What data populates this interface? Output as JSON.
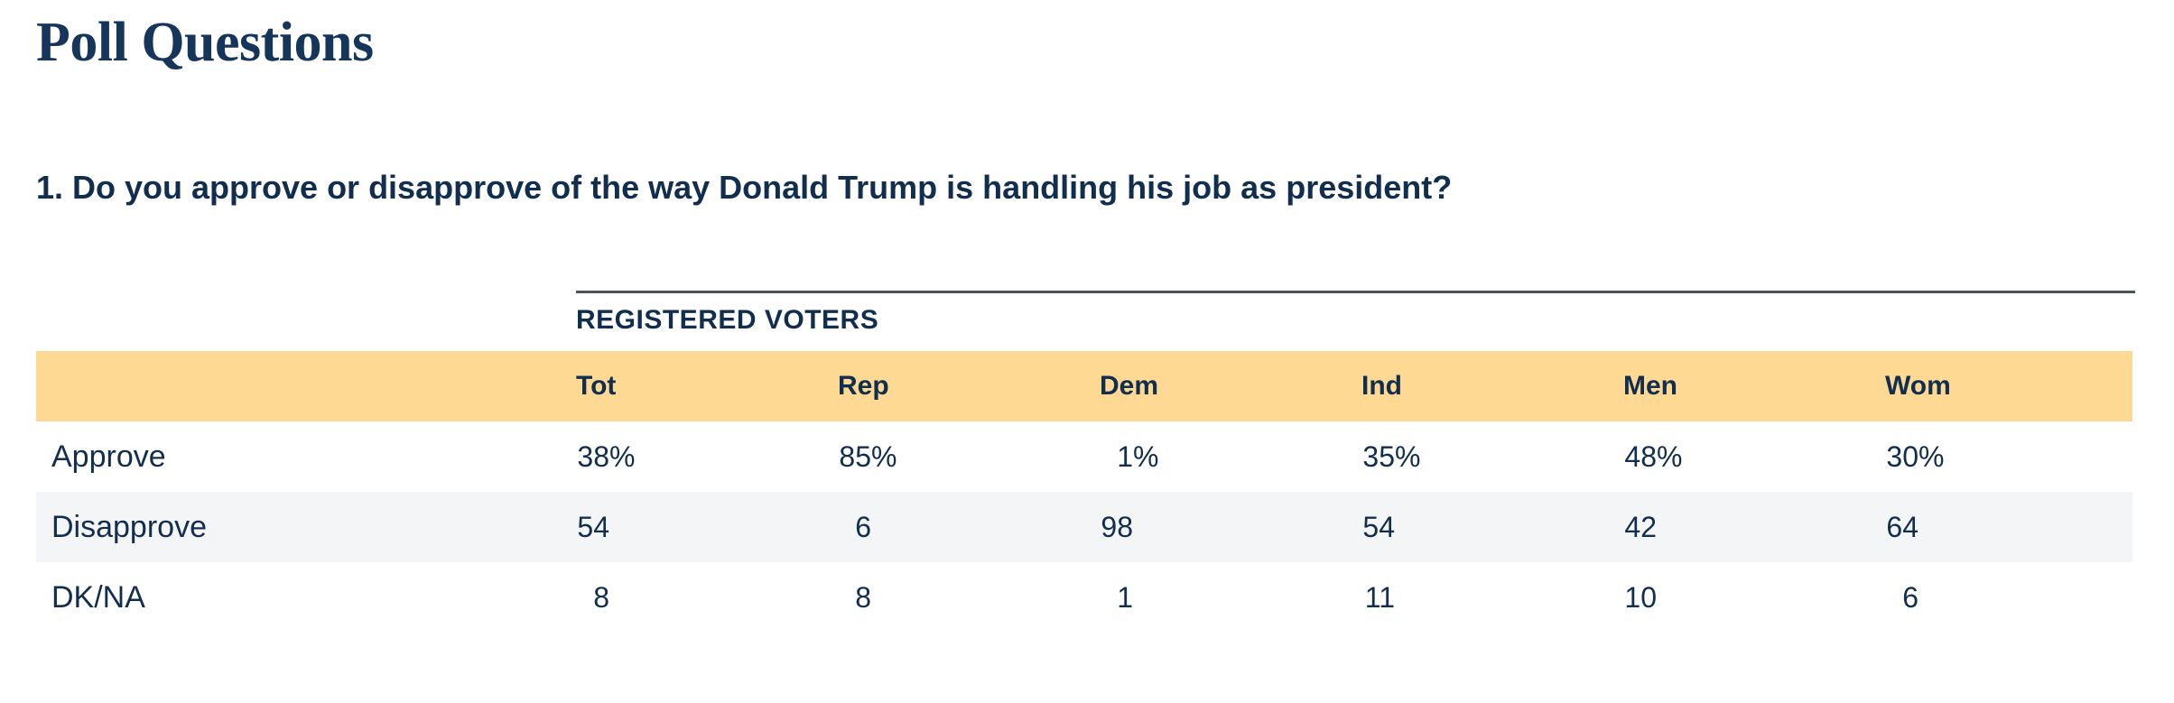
{
  "page": {
    "title": "Poll Questions"
  },
  "question": {
    "text": "1. Do you approve or disapprove of the way Donald Trump is handling his job as president?"
  },
  "table": {
    "group_header": "REGISTERED VOTERS",
    "columns": [
      "Tot",
      "Rep",
      "Dem",
      "Ind",
      "Men",
      "Wom"
    ],
    "rows": [
      {
        "label": "Approve",
        "cells": [
          {
            "num": "38",
            "suffix": "%"
          },
          {
            "num": "85",
            "suffix": "%"
          },
          {
            "num": "1",
            "suffix": "%"
          },
          {
            "num": "35",
            "suffix": "%"
          },
          {
            "num": "48",
            "suffix": "%"
          },
          {
            "num": "30",
            "suffix": "%"
          }
        ]
      },
      {
        "label": "Disapprove",
        "cells": [
          {
            "num": "54",
            "suffix": ""
          },
          {
            "num": "6",
            "suffix": ""
          },
          {
            "num": "98",
            "suffix": ""
          },
          {
            "num": "54",
            "suffix": ""
          },
          {
            "num": "42",
            "suffix": ""
          },
          {
            "num": "64",
            "suffix": ""
          }
        ]
      },
      {
        "label": "DK/NA",
        "cells": [
          {
            "num": "8",
            "suffix": ""
          },
          {
            "num": "8",
            "suffix": ""
          },
          {
            "num": "1",
            "suffix": ""
          },
          {
            "num": "11",
            "suffix": ""
          },
          {
            "num": "10",
            "suffix": ""
          },
          {
            "num": "6",
            "suffix": ""
          }
        ]
      }
    ]
  },
  "chart_data": {
    "type": "table",
    "title": "1. Do you approve or disapprove of the way Donald Trump is handling his job as president?",
    "group_header": "REGISTERED VOTERS",
    "categories": [
      "Tot",
      "Rep",
      "Dem",
      "Ind",
      "Men",
      "Wom"
    ],
    "series": [
      {
        "name": "Approve",
        "values": [
          38,
          85,
          1,
          35,
          48,
          30
        ]
      },
      {
        "name": "Disapprove",
        "values": [
          54,
          6,
          98,
          54,
          42,
          64
        ]
      },
      {
        "name": "DK/NA",
        "values": [
          8,
          8,
          1,
          11,
          10,
          6
        ]
      }
    ],
    "value_unit": "percent"
  },
  "colors": {
    "text_navy": "#122e4e",
    "title_navy": "#16355b",
    "header_row_yellow": "#fdd993",
    "alt_row_gray": "#f4f5f7",
    "divider_gray": "#4e545b",
    "background": "#ffffff"
  }
}
